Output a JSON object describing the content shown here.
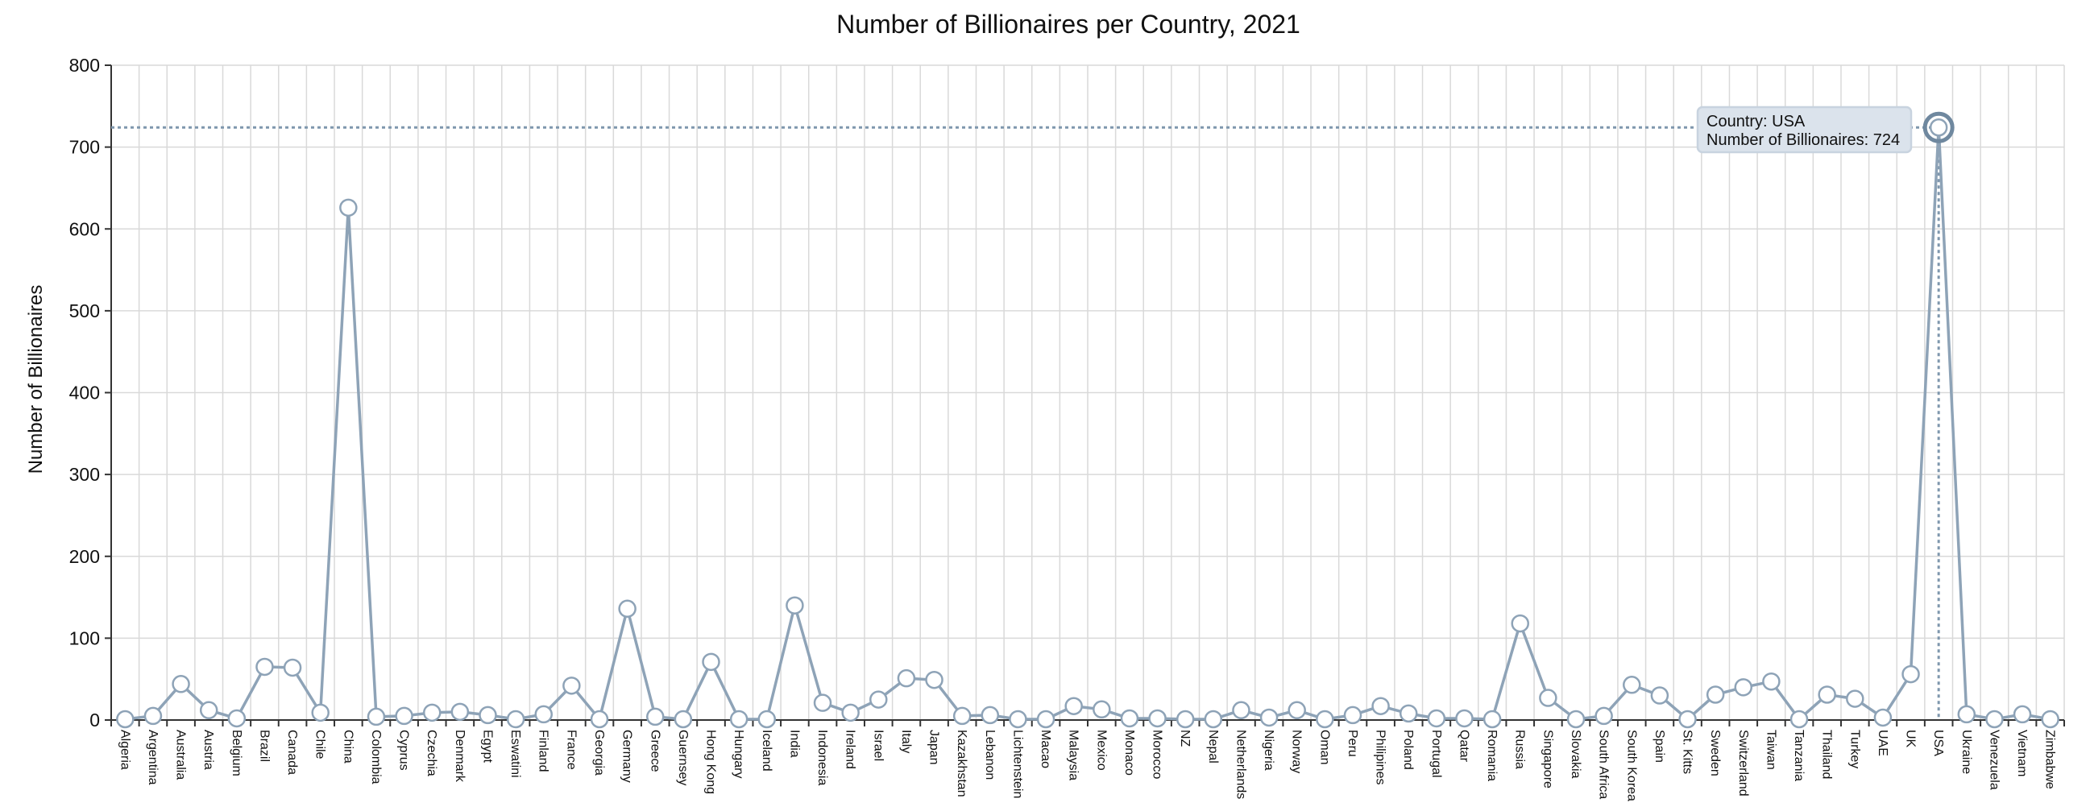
{
  "chart_data": {
    "type": "line",
    "title": "Number of Billionaires per Country, 2021",
    "xlabel": "",
    "ylabel": "Number of Billionaires",
    "ylim": [
      0,
      800
    ],
    "yticks": [
      0,
      100,
      200,
      300,
      400,
      500,
      600,
      700,
      800
    ],
    "grid": true,
    "categories": [
      "Algeria",
      "Argentina",
      "Australia",
      "Austria",
      "Belgium",
      "Brazil",
      "Canada",
      "Chile",
      "China",
      "Colombia",
      "Cyprus",
      "Czechia",
      "Denmark",
      "Egypt",
      "Eswatini",
      "Finland",
      "France",
      "Georgia",
      "Germany",
      "Greece",
      "Guernsey",
      "Hong Kong",
      "Hungary",
      "Iceland",
      "India",
      "Indonesia",
      "Ireland",
      "Israel",
      "Italy",
      "Japan",
      "Kazakhstan",
      "Lebanon",
      "Lichtenstein",
      "Macao",
      "Malaysia",
      "Mexico",
      "Monaco",
      "Morocco",
      "NZ",
      "Nepal",
      "Netherlands",
      "Nigeria",
      "Norway",
      "Oman",
      "Peru",
      "Philipines",
      "Poland",
      "Portugal",
      "Qatar",
      "Romania",
      "Russia",
      "Singapore",
      "Slovakia",
      "South Africa",
      "South Korea",
      "Spain",
      "St. Kitts",
      "Sweden",
      "Switzerland",
      "Taiwan",
      "Tanzania",
      "Thailand",
      "Turkey",
      "UAE",
      "UK",
      "USA",
      "Ukraine",
      "Venezuela",
      "Vietnam",
      "Zimbabwe"
    ],
    "series": [
      {
        "values": [
          1,
          5,
          44,
          12,
          2,
          65,
          64,
          9,
          626,
          4,
          5,
          9,
          10,
          6,
          1,
          7,
          42,
          1,
          136,
          4,
          1,
          71,
          1,
          1,
          140,
          21,
          9,
          25,
          51,
          49,
          5,
          6,
          1,
          1,
          17,
          13,
          2,
          2,
          1,
          1,
          12,
          3,
          12,
          1,
          6,
          17,
          8,
          2,
          2,
          1,
          118,
          27,
          1,
          5,
          43,
          30,
          1,
          31,
          40,
          47,
          1,
          31,
          26,
          3,
          56,
          724,
          7,
          1,
          7,
          1
        ]
      }
    ],
    "highlight": {
      "country": "USA",
      "value": 724,
      "tooltip_line1": "Country: USA",
      "tooltip_line2": "Number of Billionaires: 724"
    },
    "colors": {
      "line": "#8ea3b7",
      "point_fill": "#ffffff",
      "grid": "#d9d9d9",
      "tooltip_bg": "#dbe3ec"
    }
  }
}
